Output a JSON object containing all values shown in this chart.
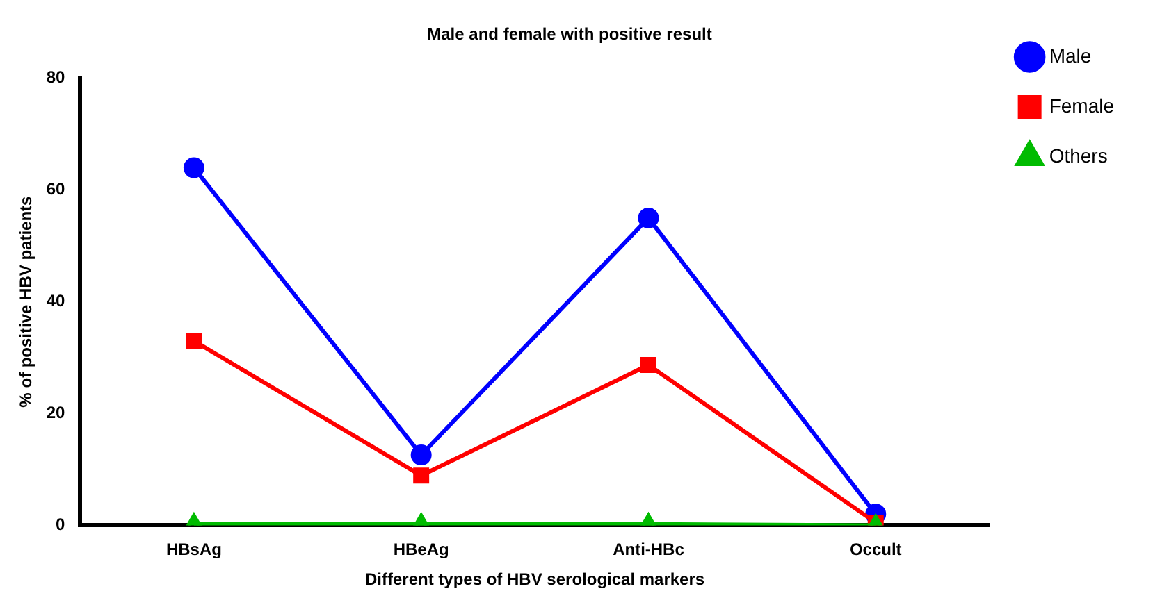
{
  "chart_data": {
    "type": "line",
    "title": "Male and female with positive result",
    "xlabel": "Different types of HBV serological markers",
    "ylabel": "% of positive HBV patients",
    "categories": [
      "HBsAg",
      "HBeAg",
      "Anti-HBc",
      "Occult"
    ],
    "series": [
      {
        "name": "Male",
        "color": "#0000ff",
        "marker": "circle",
        "values": [
          64,
          12.6,
          55,
          2
        ]
      },
      {
        "name": "Female",
        "color": "#ff0000",
        "marker": "square",
        "values": [
          33,
          8.9,
          28.7,
          0.5
        ]
      },
      {
        "name": "Others",
        "color": "#00bb00",
        "marker": "triangle",
        "values": [
          0.2,
          0.2,
          0.2,
          0
        ]
      }
    ],
    "ylim": [
      0,
      80
    ],
    "yticks": [
      0,
      20,
      40,
      60,
      80
    ],
    "grid": false,
    "legend": "top right",
    "line_style": "solid"
  }
}
